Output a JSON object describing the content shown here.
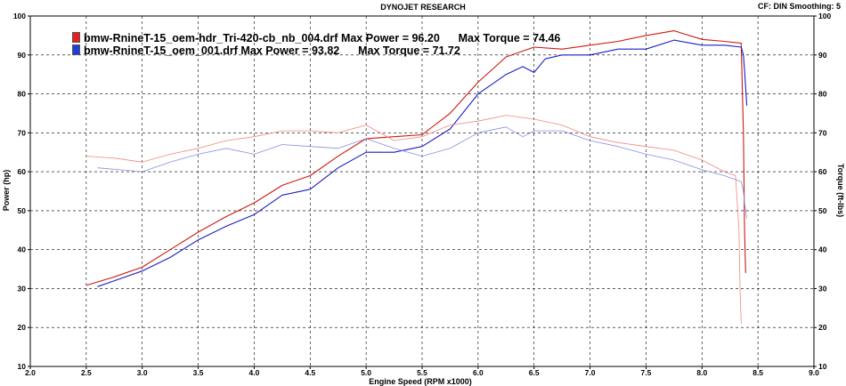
{
  "header": {
    "title": "DYNOJET RESEARCH",
    "cf_label": "CF: DIN",
    "smoothing_label": "Smoothing: 5"
  },
  "legend": [
    {
      "file": "bmw-RnineT-15_oem-hdr_Tri-420-cb_nb_004.drf",
      "max_power_text": "Max Power = 96.20",
      "max_torque_text": "Max Torque = 74.46",
      "color": "#e8201e"
    },
    {
      "file": "bmw-RnineT-15_oem_001.drf",
      "max_power_text": "Max Power = 93.82",
      "max_torque_text": "Max Torque = 71.72",
      "color": "#1f3fd8"
    }
  ],
  "colors": {
    "red_power": "#cc1a12",
    "blue_power": "#1b1fc0",
    "red_torque": "#ee8a80",
    "blue_torque": "#8890e0",
    "grid": "#000000"
  },
  "chart_data": {
    "type": "line",
    "xlabel": "Engine Speed (RPM x1000)",
    "ylabel_left": "Power (hp)",
    "ylabel_right": "Torque (ft-lbs)",
    "xlim": [
      2.0,
      9.0
    ],
    "ylim": [
      10,
      100
    ],
    "x_ticks": [
      "2.0",
      "2.5",
      "3.0",
      "3.5",
      "4.0",
      "4.5",
      "5.0",
      "5.5",
      "6.0",
      "6.5",
      "7.0",
      "7.5",
      "8.0",
      "8.5",
      "9.0"
    ],
    "y_ticks": [
      "10",
      "20",
      "30",
      "40",
      "50",
      "60",
      "70",
      "80",
      "90",
      "100"
    ],
    "grid": true,
    "series": [
      {
        "key": "red_power",
        "x": [
          2.5,
          2.75,
          3.0,
          3.25,
          3.5,
          3.75,
          4.0,
          4.25,
          4.5,
          4.75,
          5.0,
          5.25,
          5.5,
          5.75,
          6.0,
          6.25,
          6.5,
          6.75,
          7.0,
          7.25,
          7.5,
          7.75,
          8.0,
          8.2,
          8.35,
          8.37,
          8.38,
          8.39
        ],
        "y": [
          30.8,
          33,
          35.5,
          40,
          44.5,
          48.5,
          52,
          56.5,
          59,
          64,
          68.5,
          69,
          69.5,
          75,
          83,
          89.5,
          92,
          91.5,
          92.5,
          93.5,
          95,
          96.2,
          94,
          93.5,
          93,
          70,
          45,
          34
        ]
      },
      {
        "key": "blue_power",
        "x": [
          2.6,
          2.8,
          3.0,
          3.25,
          3.5,
          3.75,
          4.0,
          4.25,
          4.5,
          4.75,
          5.0,
          5.25,
          5.5,
          5.75,
          6.0,
          6.25,
          6.4,
          6.5,
          6.6,
          6.75,
          7.0,
          7.25,
          7.5,
          7.75,
          8.0,
          8.2,
          8.35,
          8.37,
          8.38,
          8.4
        ],
        "y": [
          30.5,
          32.5,
          34.5,
          38,
          42.5,
          46,
          49,
          54,
          55.5,
          61,
          65,
          65,
          66.5,
          71,
          80,
          85,
          87,
          85.5,
          89,
          90,
          90,
          91.5,
          91.5,
          93.8,
          92.5,
          92.5,
          92,
          90,
          86,
          77
        ]
      },
      {
        "key": "red_torque",
        "x": [
          2.5,
          2.75,
          3.0,
          3.25,
          3.5,
          3.75,
          4.0,
          4.25,
          4.5,
          4.75,
          5.0,
          5.25,
          5.5,
          5.75,
          6.0,
          6.25,
          6.5,
          6.75,
          7.0,
          7.25,
          7.5,
          7.75,
          8.0,
          8.2,
          8.3,
          8.33,
          8.34,
          8.35
        ],
        "y": [
          64,
          63.5,
          62.5,
          64.5,
          66,
          68,
          69,
          70.5,
          70.5,
          70,
          72,
          68,
          69,
          72,
          73,
          74.5,
          73.5,
          72,
          69,
          67.5,
          66.5,
          65.5,
          63,
          60,
          59,
          45,
          30,
          21
        ]
      },
      {
        "key": "blue_torque",
        "x": [
          2.6,
          2.8,
          3.0,
          3.25,
          3.5,
          3.75,
          4.0,
          4.25,
          4.5,
          4.75,
          5.0,
          5.25,
          5.5,
          5.75,
          6.0,
          6.25,
          6.4,
          6.5,
          6.75,
          7.0,
          7.25,
          7.5,
          7.75,
          8.0,
          8.2,
          8.35,
          8.37,
          8.38,
          8.4
        ],
        "y": [
          61,
          60.5,
          60,
          62.5,
          64.5,
          66,
          64.5,
          67,
          66.5,
          66,
          68.5,
          66,
          64,
          66,
          70,
          71.5,
          69,
          70.5,
          70.5,
          68,
          66.5,
          64.5,
          63,
          60.5,
          59,
          57.5,
          55,
          52,
          48
        ]
      }
    ]
  }
}
